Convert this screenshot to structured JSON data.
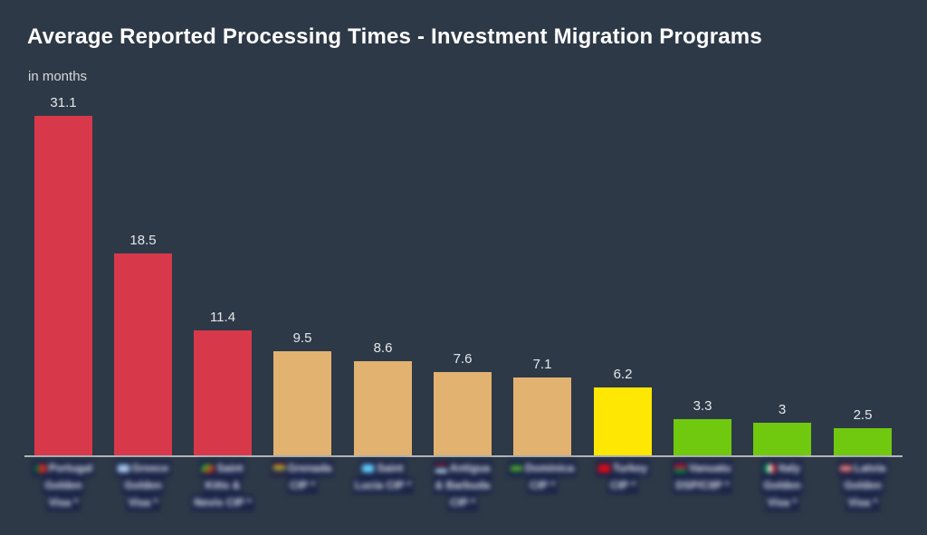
{
  "header": {
    "title": "Average Reported Processing Times - Investment Migration Programs",
    "subtitle": "in months"
  },
  "colors": {
    "background": "#2e3947",
    "title_text": "#ffffff",
    "subtitle_text": "#d5dade",
    "value_label_text": "#e3e7eb",
    "axis_line": "#b2b5b9",
    "bar_red": "#d8394a",
    "bar_tan": "#e2b271",
    "bar_yellow": "#fde703",
    "bar_green": "#70c90f"
  },
  "chart_data": {
    "type": "bar",
    "title": "Average Reported Processing Times - Investment Migration Programs",
    "subtitle": "in months",
    "xlabel": "",
    "ylabel": "months",
    "ylim": [
      0,
      33
    ],
    "grid": false,
    "legend": false,
    "x_axis_labels_blurred": true,
    "categories": [
      "Portugal Golden Visa",
      "Greece Golden Visa",
      "Saint Kitts & Nevis CIP",
      "Grenada CIP",
      "Saint Lucia CIP",
      "Antigua & Barbuda CIP",
      "Dominica CIP",
      "Turkey CIP",
      "Vanuatu DSP/CIIP",
      "Italy Golden Visa",
      "Latvia Golden Visa"
    ],
    "values": [
      31.1,
      18.5,
      11.4,
      9.5,
      8.6,
      7.6,
      7.1,
      6.2,
      3.3,
      3,
      2.5
    ],
    "value_labels": [
      "31.1",
      "18.5",
      "11.4",
      "9.5",
      "8.6",
      "7.6",
      "7.1",
      "6.2",
      "3.3",
      "3",
      "2.5"
    ],
    "bar_colors": [
      "#d8394a",
      "#d8394a",
      "#d8394a",
      "#e2b271",
      "#e2b271",
      "#e2b271",
      "#e2b271",
      "#fde703",
      "#70c90f",
      "#70c90f",
      "#70c90f"
    ]
  },
  "x_labels": [
    {
      "flag": "portugal",
      "lines": [
        "Portugal",
        "Golden",
        "Visa *"
      ]
    },
    {
      "flag": "greece",
      "lines": [
        "Greece",
        "Golden",
        "Visa *"
      ]
    },
    {
      "flag": "saint-kitts-nevis",
      "lines": [
        "Saint",
        "Kitts &",
        "Nevis CIP *"
      ]
    },
    {
      "flag": "grenada",
      "lines": [
        "Grenada",
        "CIP *"
      ]
    },
    {
      "flag": "saint-lucia",
      "lines": [
        "Saint",
        "Lucia CIP *"
      ]
    },
    {
      "flag": "antigua-barbuda",
      "lines": [
        "Antigua",
        "& Barbuda",
        "CIP *"
      ]
    },
    {
      "flag": "dominica",
      "lines": [
        "Dominica",
        "CIP *"
      ]
    },
    {
      "flag": "turkey",
      "lines": [
        "Turkey",
        "CIP *"
      ]
    },
    {
      "flag": "vanuatu",
      "lines": [
        "Vanuatu",
        "DSP/CIIP *"
      ]
    },
    {
      "flag": "italy",
      "lines": [
        "Italy",
        "Golden",
        "Visa *"
      ]
    },
    {
      "flag": "latvia",
      "lines": [
        "Latvia",
        "Golden",
        "Visa *"
      ]
    }
  ]
}
